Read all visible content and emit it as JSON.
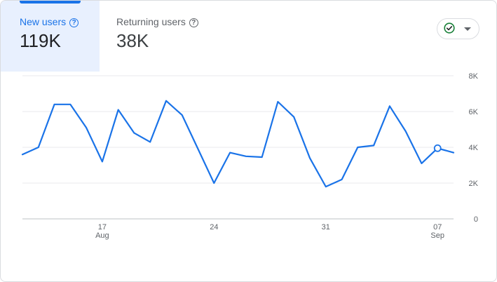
{
  "tabs": {
    "new_users": {
      "label": "New users",
      "value": "119K"
    },
    "returning_users": {
      "label": "Returning users",
      "value": "38K"
    }
  },
  "help_icon_glyph": "?",
  "compare_button": {
    "icon": "check-circle-icon",
    "dropdown_icon": "caret-down-icon"
  },
  "colors": {
    "accent": "#1a73e8",
    "line": "#1a73e8",
    "active_tab_bg": "#e8f0fe",
    "check_green": "#188038"
  },
  "chart_data": {
    "type": "line",
    "title": "",
    "xlabel": "",
    "ylabel": "",
    "y_ticks": [
      "8K",
      "6K",
      "4K",
      "2K",
      "0"
    ],
    "ylim": [
      0,
      8000
    ],
    "grid": true,
    "x_ticks": [
      {
        "day": "17",
        "month": "Aug",
        "index": 5
      },
      {
        "day": "24",
        "month": "",
        "index": 12
      },
      {
        "day": "31",
        "month": "",
        "index": 19
      },
      {
        "day": "07",
        "month": "Sep",
        "index": 26
      }
    ],
    "series": [
      {
        "values": [
          3600,
          4000,
          6400,
          6400,
          5100,
          3200,
          6100,
          4800,
          4300,
          6600,
          5800,
          3900,
          2000,
          3700,
          3500,
          3450,
          6550,
          5700,
          3400,
          1800,
          2200,
          4000,
          4100,
          6300,
          4900,
          3100,
          3950,
          3700
        ],
        "highlight_index": 26
      }
    ]
  }
}
